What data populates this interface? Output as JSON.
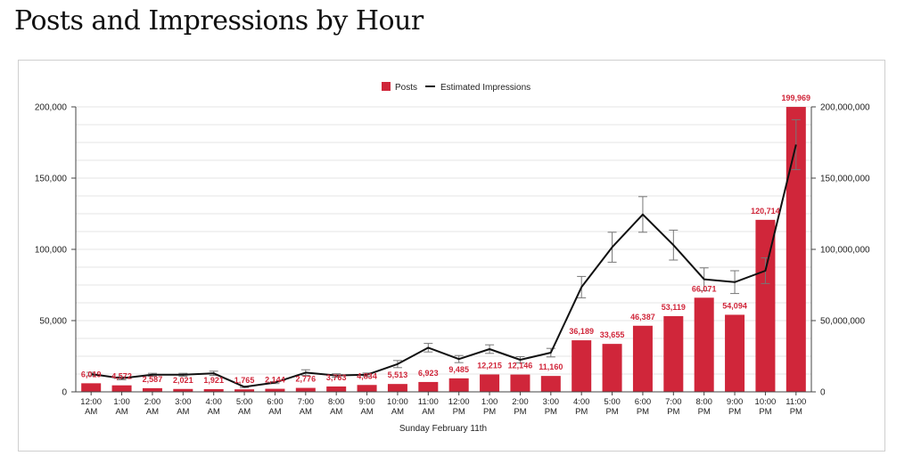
{
  "page": {
    "title": "Posts and Impressions by Hour"
  },
  "chart_data": {
    "type": "bar",
    "title": "Posts and Impressions by Hour",
    "xlabel": "Sunday February 11th",
    "legend": {
      "placement": "top-center",
      "items": [
        "Posts",
        "Estimated Impressions"
      ]
    },
    "categories": [
      [
        "12:00",
        "AM"
      ],
      [
        "1:00",
        "AM"
      ],
      [
        "2:00",
        "AM"
      ],
      [
        "3:00",
        "AM"
      ],
      [
        "4:00",
        "AM"
      ],
      [
        "5:00",
        "AM"
      ],
      [
        "6:00",
        "AM"
      ],
      [
        "7:00",
        "AM"
      ],
      [
        "8:00",
        "AM"
      ],
      [
        "9:00",
        "AM"
      ],
      [
        "10:00",
        "AM"
      ],
      [
        "11:00",
        "AM"
      ],
      [
        "12:00",
        "PM"
      ],
      [
        "1:00",
        "PM"
      ],
      [
        "2:00",
        "PM"
      ],
      [
        "3:00",
        "PM"
      ],
      [
        "4:00",
        "PM"
      ],
      [
        "5:00",
        "PM"
      ],
      [
        "6:00",
        "PM"
      ],
      [
        "7:00",
        "PM"
      ],
      [
        "8:00",
        "PM"
      ],
      [
        "9:00",
        "PM"
      ],
      [
        "10:00",
        "PM"
      ],
      [
        "11:00",
        "PM"
      ]
    ],
    "series": [
      {
        "name": "Posts",
        "type": "bar",
        "axis": "left",
        "color": "#d0263a",
        "values": [
          6019,
          4572,
          2587,
          2021,
          1921,
          1765,
          2144,
          2776,
          3763,
          4834,
          5513,
          6923,
          9485,
          12215,
          12146,
          11160,
          36189,
          33655,
          46387,
          53119,
          66071,
          54094,
          120714,
          199969
        ],
        "labels": [
          "6,019",
          "4,572",
          "2,587",
          "2,021",
          "1,921",
          "1,765",
          "2,144",
          "2,776",
          "3,763",
          "4,834",
          "5,513",
          "6,923",
          "9,485",
          "12,215",
          "12,146",
          "11,160",
          "36,189",
          "33,655",
          "46,387",
          "53,119",
          "66,071",
          "54,094",
          "120,714",
          "199,969"
        ]
      },
      {
        "name": "Estimated Impressions",
        "type": "line",
        "axis": "right",
        "color": "#111111",
        "values": [
          12500000,
          9500000,
          12000000,
          12000000,
          13000000,
          3500000,
          6500000,
          13500000,
          11500000,
          12000000,
          19500000,
          31000000,
          23000000,
          30000000,
          22500000,
          27500000,
          73500000,
          101500000,
          124500000,
          103000000,
          79000000,
          77000000,
          85000000,
          173500000
        ],
        "error": [
          1200000,
          1000000,
          1000000,
          1000000,
          1500000,
          500000,
          700000,
          2000000,
          1200000,
          1200000,
          2500000,
          3000000,
          2500000,
          3000000,
          2200000,
          3000000,
          7500000,
          10500000,
          12500000,
          10500000,
          8000000,
          8000000,
          9000000,
          17500000
        ]
      }
    ],
    "y_left": {
      "range": [
        0,
        200000
      ],
      "ticks": [
        "0",
        "50,000",
        "100,000",
        "150,000",
        "200,000"
      ]
    },
    "y_right": {
      "range": [
        0,
        200000000
      ],
      "ticks": [
        "0",
        "50,000,000",
        "100,000,000",
        "150,000,000",
        "200,000,000"
      ]
    },
    "grid": true
  }
}
